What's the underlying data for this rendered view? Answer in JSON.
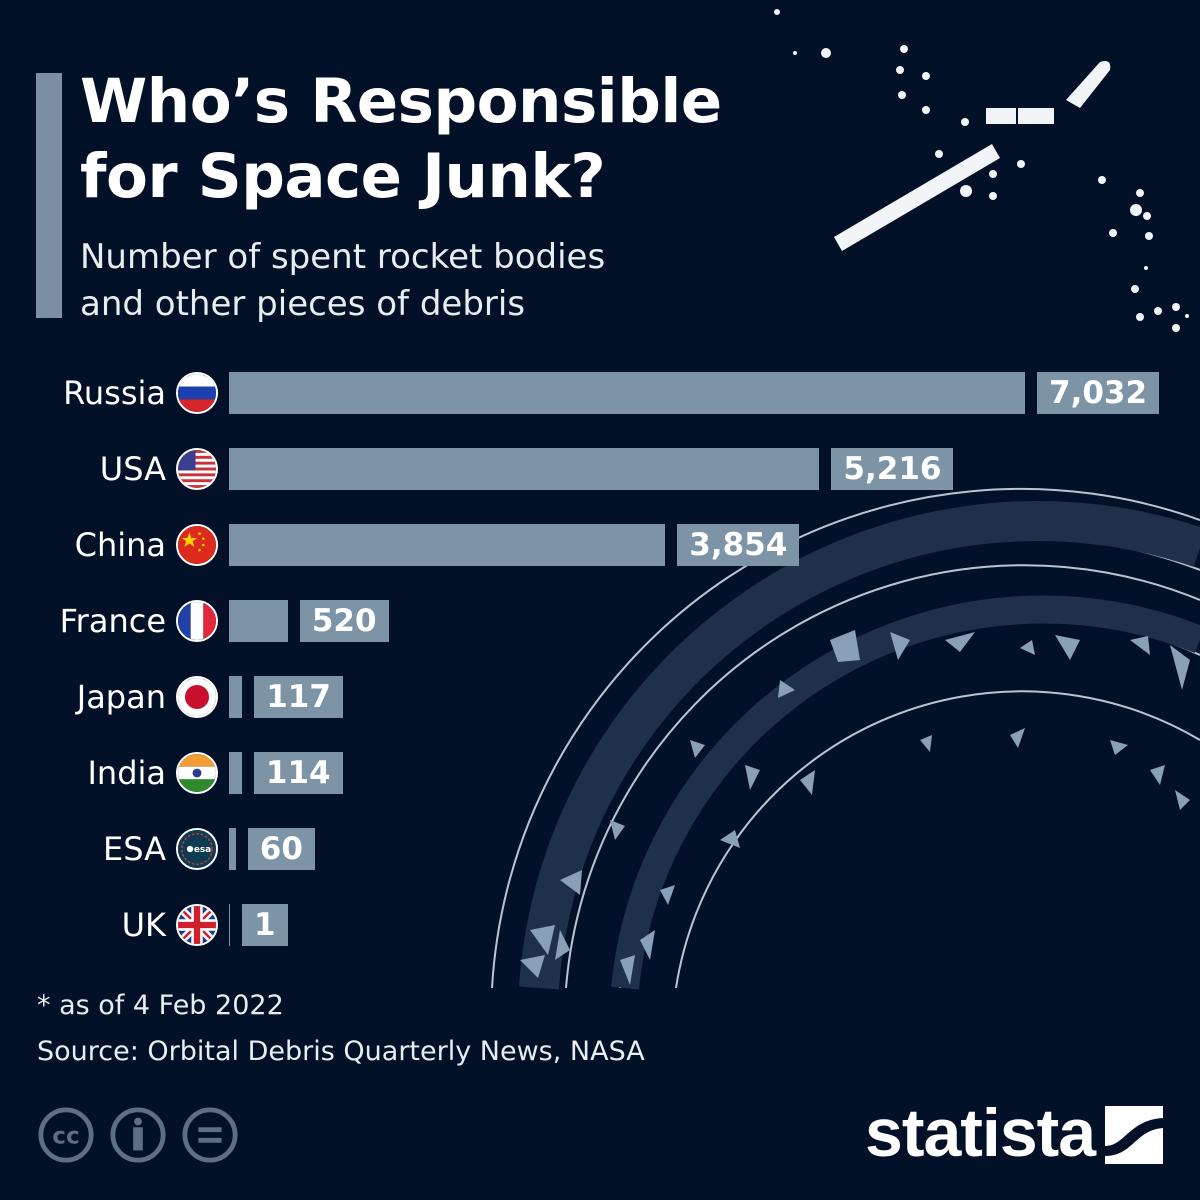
{
  "header": {
    "title_line1": "Who’s Responsible",
    "title_line2": "for Space Junk?",
    "subtitle_line1": "Number of spent rocket bodies",
    "subtitle_line2": "and other pieces of debris"
  },
  "colors": {
    "background": "#021127",
    "bar": "#7d93a6",
    "accent": "#7b90a3",
    "text": "#ffffff"
  },
  "chart_data": {
    "type": "bar",
    "orientation": "horizontal",
    "title": "Who’s Responsible for Space Junk?",
    "subtitle": "Number of spent rocket bodies and other pieces of debris",
    "xlabel": "",
    "ylabel": "",
    "categories": [
      "Russia",
      "USA",
      "China",
      "France",
      "Japan",
      "India",
      "ESA",
      "UK"
    ],
    "values": [
      7032,
      5216,
      3854,
      520,
      117,
      114,
      60,
      1
    ],
    "value_labels": [
      "7,032",
      "5,216",
      "3,854",
      "520",
      "117",
      "114",
      "60",
      "1"
    ],
    "xlim": [
      0,
      7032
    ],
    "grid": false,
    "legend": "none",
    "footnote": "* as of 4 Feb 2022",
    "source": "Source: Orbital Debris Quarterly News, NASA"
  },
  "rows": [
    {
      "label": "Russia",
      "flag": "russia-flag-icon",
      "value": 7032,
      "value_label": "7,032"
    },
    {
      "label": "USA",
      "flag": "usa-flag-icon",
      "value": 5216,
      "value_label": "5,216"
    },
    {
      "label": "China",
      "flag": "china-flag-icon",
      "value": 3854,
      "value_label": "3,854"
    },
    {
      "label": "France",
      "flag": "france-flag-icon",
      "value": 520,
      "value_label": "520"
    },
    {
      "label": "Japan",
      "flag": "japan-flag-icon",
      "value": 117,
      "value_label": "117"
    },
    {
      "label": "India",
      "flag": "india-flag-icon",
      "value": 114,
      "value_label": "114"
    },
    {
      "label": "ESA",
      "flag": "esa-logo-icon",
      "value": 60,
      "value_label": "60"
    },
    {
      "label": "UK",
      "flag": "uk-flag-icon",
      "value": 1,
      "value_label": "1"
    }
  ],
  "footer": {
    "note": "* as of 4 Feb 2022",
    "source": "Source: Orbital Debris Quarterly News, NASA",
    "license_icons": [
      "cc-icon",
      "attribution-icon",
      "no-derivatives-icon"
    ],
    "brand": "statista"
  }
}
